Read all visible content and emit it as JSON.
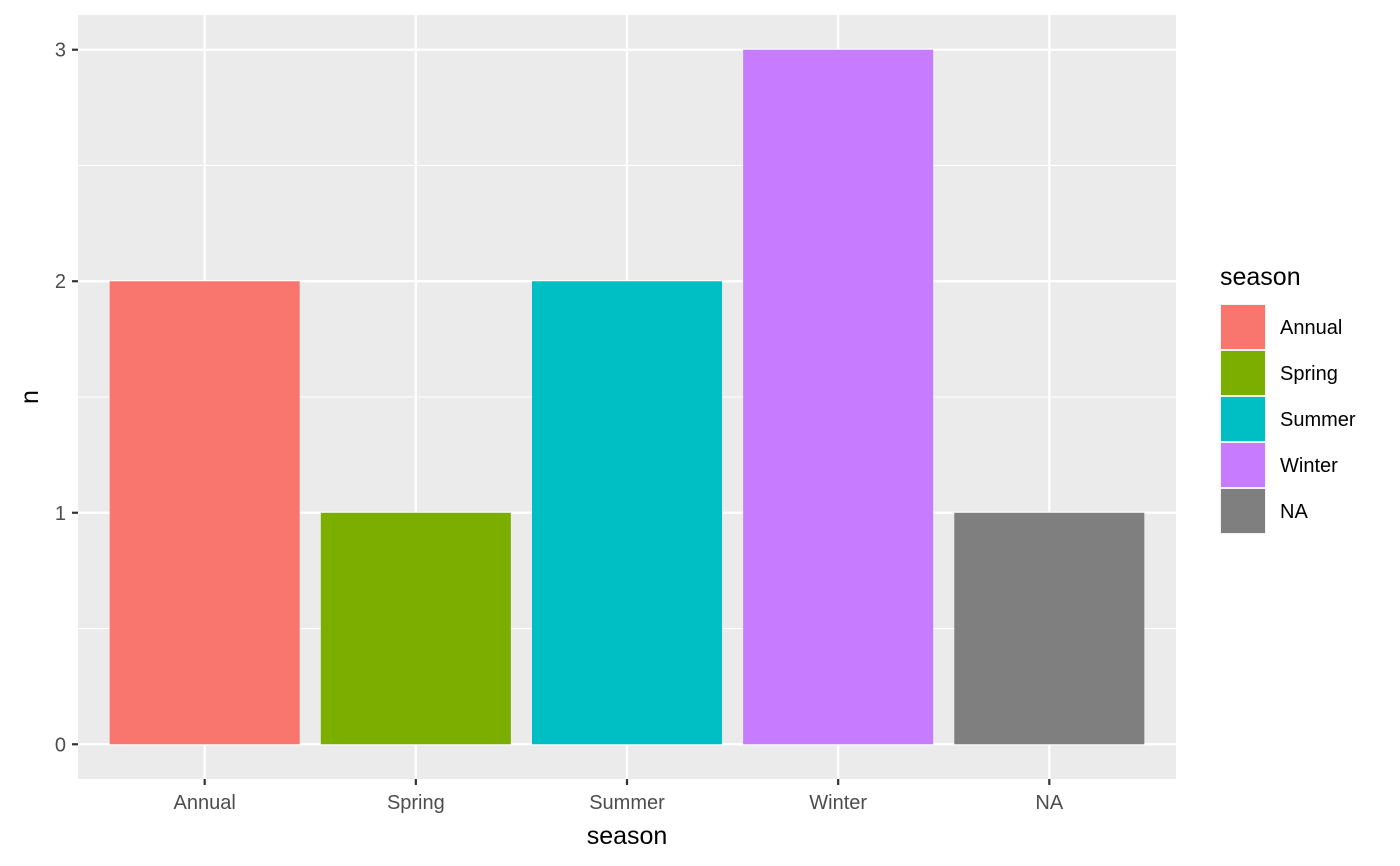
{
  "chart_data": {
    "type": "bar",
    "categories": [
      "Annual",
      "Spring",
      "Summer",
      "Winter",
      "NA"
    ],
    "values": [
      2,
      1,
      2,
      3,
      1
    ],
    "colors": [
      "#F8766D",
      "#7CAE00",
      "#00BFC4",
      "#C77CFF",
      "#7F7F7F"
    ],
    "xlabel": "season",
    "ylabel": "n",
    "ylim": [
      -0.15,
      3.15
    ],
    "yticks": [
      "0",
      "1",
      "2",
      "3"
    ],
    "grid": true,
    "panel_background": "#EBEBEB",
    "gridline_color": "#FFFFFF",
    "legend": {
      "title": "season",
      "position": "right",
      "entries": [
        "Annual",
        "Spring",
        "Summer",
        "Winter",
        "NA"
      ]
    }
  }
}
